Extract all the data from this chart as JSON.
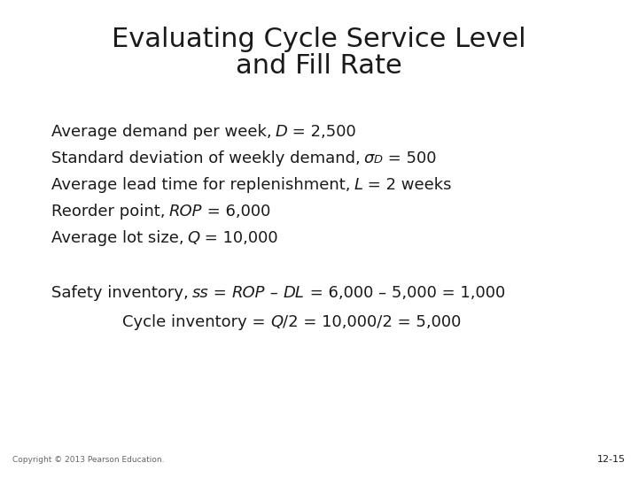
{
  "title_line1": "Evaluating Cycle Service Level",
  "title_line2": "and Fill Rate",
  "title_fontsize": 22,
  "body_fontsize": 13,
  "small_fontsize": 9.75,
  "copyright_fontsize": 6.5,
  "slidenum_fontsize": 8,
  "background_color": "#ffffff",
  "text_color": "#1a1a1a",
  "copyright_text": "Copyright © 2013 Pearson Education.",
  "slide_num_text": "12-15"
}
